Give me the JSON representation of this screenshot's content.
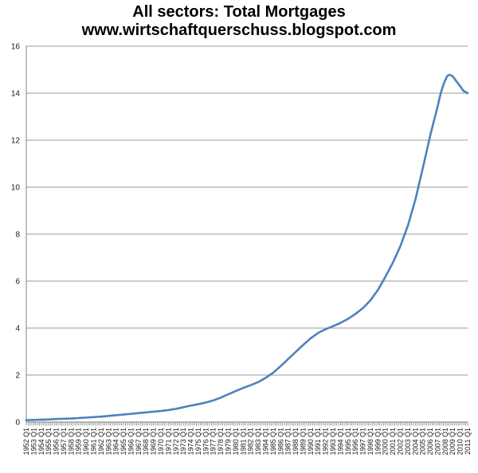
{
  "title": {
    "line1": "All sectors: Total Mortgages",
    "line2": "www.wirtschaftquerschuss.blogspot.com"
  },
  "chart_data": {
    "type": "line",
    "title": "All sectors: Total Mortgages",
    "subtitle": "www.wirtschaftquerschuss.blogspot.com",
    "x_unit": "quarter",
    "x_start": "1952 Q1",
    "x_end": "2011 Q1",
    "grid": true,
    "legend": false,
    "ylim": [
      0,
      16
    ],
    "y_ticks": [
      16,
      14,
      12,
      10,
      8,
      6,
      4,
      2,
      0
    ],
    "x_tick_labels": [
      "1952 Q1",
      "1953 Q1",
      "1954 Q1",
      "1955 Q1",
      "1956 Q1",
      "1957 Q1",
      "1958 Q1",
      "1959 Q1",
      "1960 Q1",
      "1961 Q1",
      "1962 Q1",
      "1963 Q1",
      "1964 Q1",
      "1965 Q1",
      "1966 Q1",
      "1967 Q1",
      "1968 Q1",
      "1969 Q1",
      "1970 Q1",
      "1971 Q1",
      "1972 Q1",
      "1973 Q1",
      "1974 Q1",
      "1975 Q1",
      "1976 Q1",
      "1977 Q1",
      "1978 Q1",
      "1979 Q1",
      "1980 Q1",
      "1981 Q1",
      "1982 Q1",
      "1983 Q1",
      "1984 Q1",
      "1985 Q1",
      "1986 Q1",
      "1987 Q1",
      "1988 Q1",
      "1989 Q1",
      "1990 Q1",
      "1991 Q1",
      "1992 Q1",
      "1993 Q1",
      "1994 Q1",
      "1995 Q1",
      "1996 Q1",
      "1997 Q1",
      "1998 Q1",
      "1999 Q1",
      "2000 Q1",
      "2001 Q1",
      "2002 Q1",
      "2003 Q1",
      "2004 Q1",
      "2005 Q1",
      "2006 Q1",
      "2007 Q1",
      "2008 Q1",
      "2009 Q1",
      "2010 Q1",
      "2011 Q1"
    ],
    "series": [
      {
        "name": "All sectors: Total Mortgages",
        "color": "#4F81BD",
        "values": [
          0.08,
          0.083,
          0.085,
          0.088,
          0.09,
          0.093,
          0.095,
          0.098,
          0.1,
          0.103,
          0.105,
          0.108,
          0.11,
          0.115,
          0.12,
          0.125,
          0.13,
          0.133,
          0.135,
          0.138,
          0.14,
          0.143,
          0.145,
          0.148,
          0.15,
          0.155,
          0.16,
          0.165,
          0.17,
          0.175,
          0.18,
          0.185,
          0.19,
          0.195,
          0.2,
          0.205,
          0.21,
          0.215,
          0.22,
          0.225,
          0.23,
          0.238,
          0.245,
          0.253,
          0.26,
          0.268,
          0.275,
          0.283,
          0.29,
          0.298,
          0.305,
          0.313,
          0.32,
          0.328,
          0.335,
          0.343,
          0.35,
          0.358,
          0.365,
          0.373,
          0.38,
          0.388,
          0.395,
          0.403,
          0.41,
          0.418,
          0.425,
          0.433,
          0.44,
          0.448,
          0.455,
          0.463,
          0.47,
          0.48,
          0.49,
          0.5,
          0.51,
          0.523,
          0.535,
          0.548,
          0.56,
          0.578,
          0.595,
          0.613,
          0.63,
          0.648,
          0.665,
          0.683,
          0.7,
          0.715,
          0.73,
          0.745,
          0.76,
          0.778,
          0.795,
          0.813,
          0.83,
          0.853,
          0.875,
          0.898,
          0.92,
          0.95,
          0.98,
          1.01,
          1.04,
          1.075,
          1.11,
          1.145,
          1.18,
          1.215,
          1.25,
          1.285,
          1.32,
          1.353,
          1.385,
          1.418,
          1.45,
          1.48,
          1.51,
          1.54,
          1.57,
          1.603,
          1.635,
          1.668,
          1.7,
          1.745,
          1.79,
          1.835,
          1.88,
          1.935,
          1.99,
          2.045,
          2.1,
          2.17,
          2.24,
          2.31,
          2.38,
          2.455,
          2.53,
          2.605,
          2.68,
          2.755,
          2.83,
          2.905,
          2.98,
          3.055,
          3.13,
          3.205,
          3.28,
          3.35,
          3.42,
          3.49,
          3.56,
          3.618,
          3.675,
          3.733,
          3.79,
          3.83,
          3.87,
          3.91,
          3.95,
          3.983,
          4.015,
          4.048,
          4.08,
          4.115,
          4.15,
          4.185,
          4.22,
          4.263,
          4.305,
          4.348,
          4.39,
          4.443,
          4.495,
          4.548,
          4.6,
          4.663,
          4.725,
          4.788,
          4.85,
          4.933,
          5.015,
          5.098,
          5.18,
          5.29,
          5.4,
          5.51,
          5.62,
          5.76,
          5.9,
          6.04,
          6.18,
          6.33,
          6.48,
          6.63,
          6.78,
          6.955,
          7.13,
          7.305,
          7.48,
          7.698,
          7.915,
          8.133,
          8.35,
          8.625,
          8.9,
          9.175,
          9.45,
          9.788,
          10.125,
          10.463,
          10.8,
          11.15,
          11.5,
          11.85,
          12.2,
          12.513,
          12.825,
          13.138,
          13.45,
          13.8,
          14.1,
          14.35,
          14.55,
          14.72,
          14.78,
          14.76,
          14.72,
          14.62,
          14.5,
          14.4,
          14.3,
          14.18,
          14.08,
          14.05,
          14.0
        ]
      }
    ],
    "colors": {
      "line": "#4F81BD",
      "gridline": "#999999",
      "axis": "#808080",
      "tick": "#808080",
      "label_text": "#1a1a1a",
      "background": "#ffffff"
    }
  }
}
